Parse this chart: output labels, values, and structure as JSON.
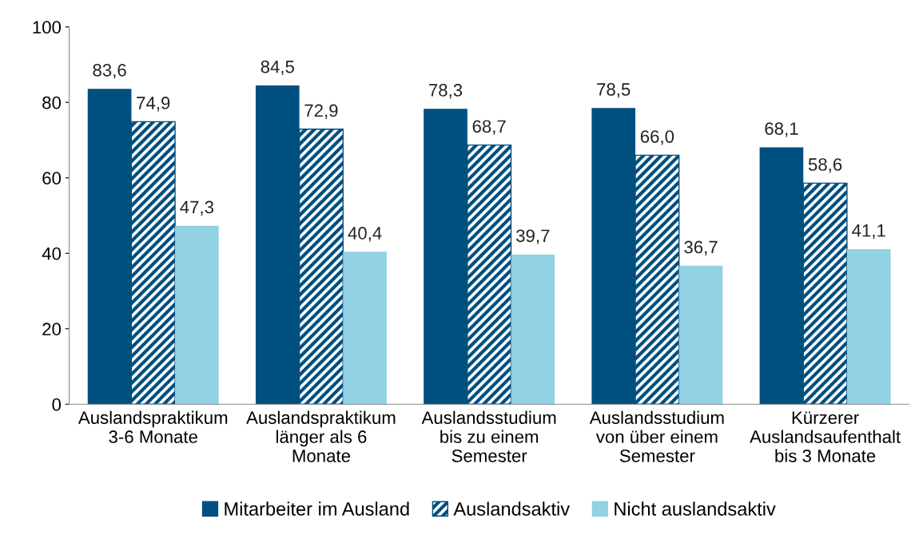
{
  "chart_data": {
    "type": "bar",
    "categories": [
      "Auslandspraktikum\n3-6 Monate",
      "Auslandspraktikum\nlänger als 6\nMonate",
      "Auslandsstudium\nbis zu einem\nSemester",
      "Auslandsstudium\nvon über einem\nSemester",
      "Kürzerer\nAuslandsaufenthalt\nbis 3 Monate"
    ],
    "series": [
      {
        "name": "Mitarbeiter im Ausland",
        "color": "#00507f",
        "values": [
          83.6,
          84.5,
          78.3,
          78.5,
          68.1
        ],
        "value_labels": [
          "83,6",
          "84,5",
          "78,3",
          "78,5",
          "68,1"
        ]
      },
      {
        "name": "Auslandsaktiv",
        "color": "#00507f",
        "values": [
          74.9,
          72.9,
          68.7,
          66.0,
          58.6
        ],
        "value_labels": [
          "74,9",
          "72,9",
          "68,7",
          "66,0",
          "58,6"
        ]
      },
      {
        "name": "Nicht auslandsaktiv",
        "color": "#93d1e5",
        "values": [
          47.3,
          40.4,
          39.7,
          36.7,
          41.1
        ],
        "value_labels": [
          "47,3",
          "40,4",
          "39,7",
          "36,7",
          "41,1"
        ]
      }
    ],
    "ylim": [
      0,
      100
    ],
    "yticks": [
      0,
      20,
      40,
      60,
      80,
      100
    ],
    "grid": false,
    "legend": "bottom"
  }
}
